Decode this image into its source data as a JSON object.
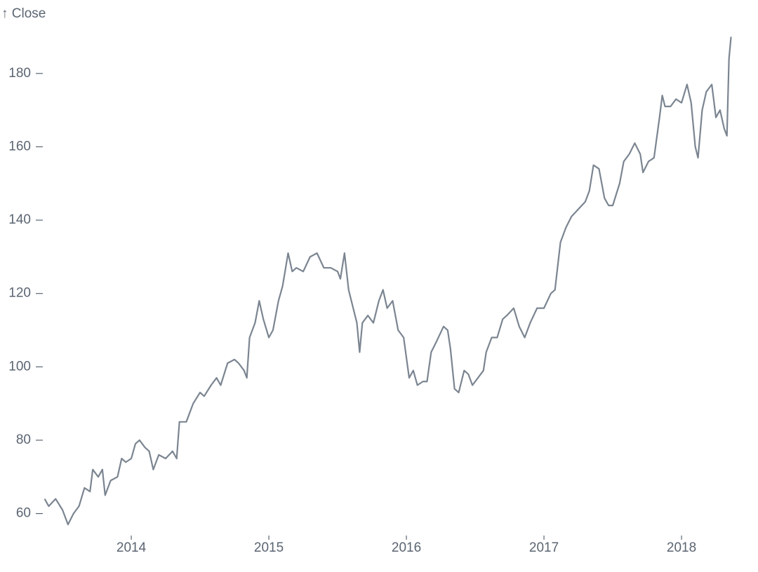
{
  "chart_data": {
    "type": "line",
    "y_label": "↑ Close",
    "x": [
      2013.37,
      2013.4,
      2013.45,
      2013.5,
      2013.54,
      2013.58,
      2013.62,
      2013.66,
      2013.7,
      2013.72,
      2013.76,
      2013.79,
      2013.81,
      2013.85,
      2013.9,
      2013.93,
      2013.96,
      2014.0,
      2014.03,
      2014.06,
      2014.1,
      2014.13,
      2014.16,
      2014.2,
      2014.25,
      2014.3,
      2014.33,
      2014.35,
      2014.4,
      2014.45,
      2014.5,
      2014.53,
      2014.58,
      2014.62,
      2014.65,
      2014.7,
      2014.75,
      2014.78,
      2014.82,
      2014.84,
      2014.86,
      2014.9,
      2014.93,
      2014.96,
      2015.0,
      2015.03,
      2015.07,
      2015.1,
      2015.14,
      2015.17,
      2015.2,
      2015.25,
      2015.3,
      2015.35,
      2015.4,
      2015.45,
      2015.5,
      2015.52,
      2015.55,
      2015.58,
      2015.62,
      2015.64,
      2015.66,
      2015.68,
      2015.72,
      2015.76,
      2015.8,
      2015.83,
      2015.86,
      2015.9,
      2015.94,
      2015.98,
      2016.02,
      2016.05,
      2016.08,
      2016.12,
      2016.15,
      2016.18,
      2016.22,
      2016.27,
      2016.3,
      2016.32,
      2016.35,
      2016.38,
      2016.42,
      2016.45,
      2016.48,
      2016.52,
      2016.56,
      2016.58,
      2016.62,
      2016.66,
      2016.7,
      2016.73,
      2016.78,
      2016.82,
      2016.86,
      2016.9,
      2016.95,
      2017.0,
      2017.05,
      2017.08,
      2017.12,
      2017.16,
      2017.2,
      2017.25,
      2017.3,
      2017.33,
      2017.36,
      2017.4,
      2017.44,
      2017.47,
      2017.5,
      2017.55,
      2017.58,
      2017.62,
      2017.66,
      2017.7,
      2017.72,
      2017.76,
      2017.8,
      2017.84,
      2017.86,
      2017.88,
      2017.92,
      2017.96,
      2018.0,
      2018.04,
      2018.07,
      2018.1,
      2018.12,
      2018.15,
      2018.18,
      2018.22,
      2018.25,
      2018.28,
      2018.31,
      2018.33,
      2018.345,
      2018.36
    ],
    "series": [
      {
        "name": "Close",
        "color": "#7b8591",
        "values": [
          64,
          62,
          64,
          61,
          57,
          60,
          62,
          67,
          66,
          72,
          70,
          72,
          65,
          69,
          70,
          75,
          74,
          75,
          79,
          80,
          78,
          77,
          72,
          76,
          75,
          77,
          75,
          85,
          85,
          90,
          93,
          92,
          95,
          97,
          95,
          101,
          102,
          101,
          99,
          97,
          108,
          112,
          118,
          113,
          108,
          110,
          118,
          122,
          131,
          126,
          127,
          126,
          130,
          131,
          127,
          127,
          126,
          124,
          131,
          121,
          115,
          112,
          104,
          112,
          114,
          112,
          118,
          121,
          116,
          118,
          110,
          108,
          97,
          99,
          95,
          96,
          96,
          104,
          107,
          111,
          110,
          105,
          94,
          93,
          99,
          98,
          95,
          97,
          99,
          104,
          108,
          108,
          113,
          114,
          116,
          111,
          108,
          112,
          116,
          116,
          120,
          121,
          134,
          138,
          141,
          143,
          145,
          148,
          155,
          154,
          146,
          144,
          144,
          150,
          156,
          158,
          161,
          158,
          153,
          156,
          157,
          168,
          174,
          171,
          171,
          173,
          172,
          177,
          172,
          160,
          157,
          170,
          175,
          177,
          168,
          170,
          165,
          163,
          184,
          190
        ]
      }
    ],
    "xlim": [
      2013.36,
      2018.36
    ],
    "xticks": [
      2014,
      2015,
      2016,
      2017,
      2018
    ],
    "ylim": [
      54,
      192
    ],
    "yticks": [
      60,
      80,
      100,
      120,
      140,
      160,
      180
    ]
  }
}
